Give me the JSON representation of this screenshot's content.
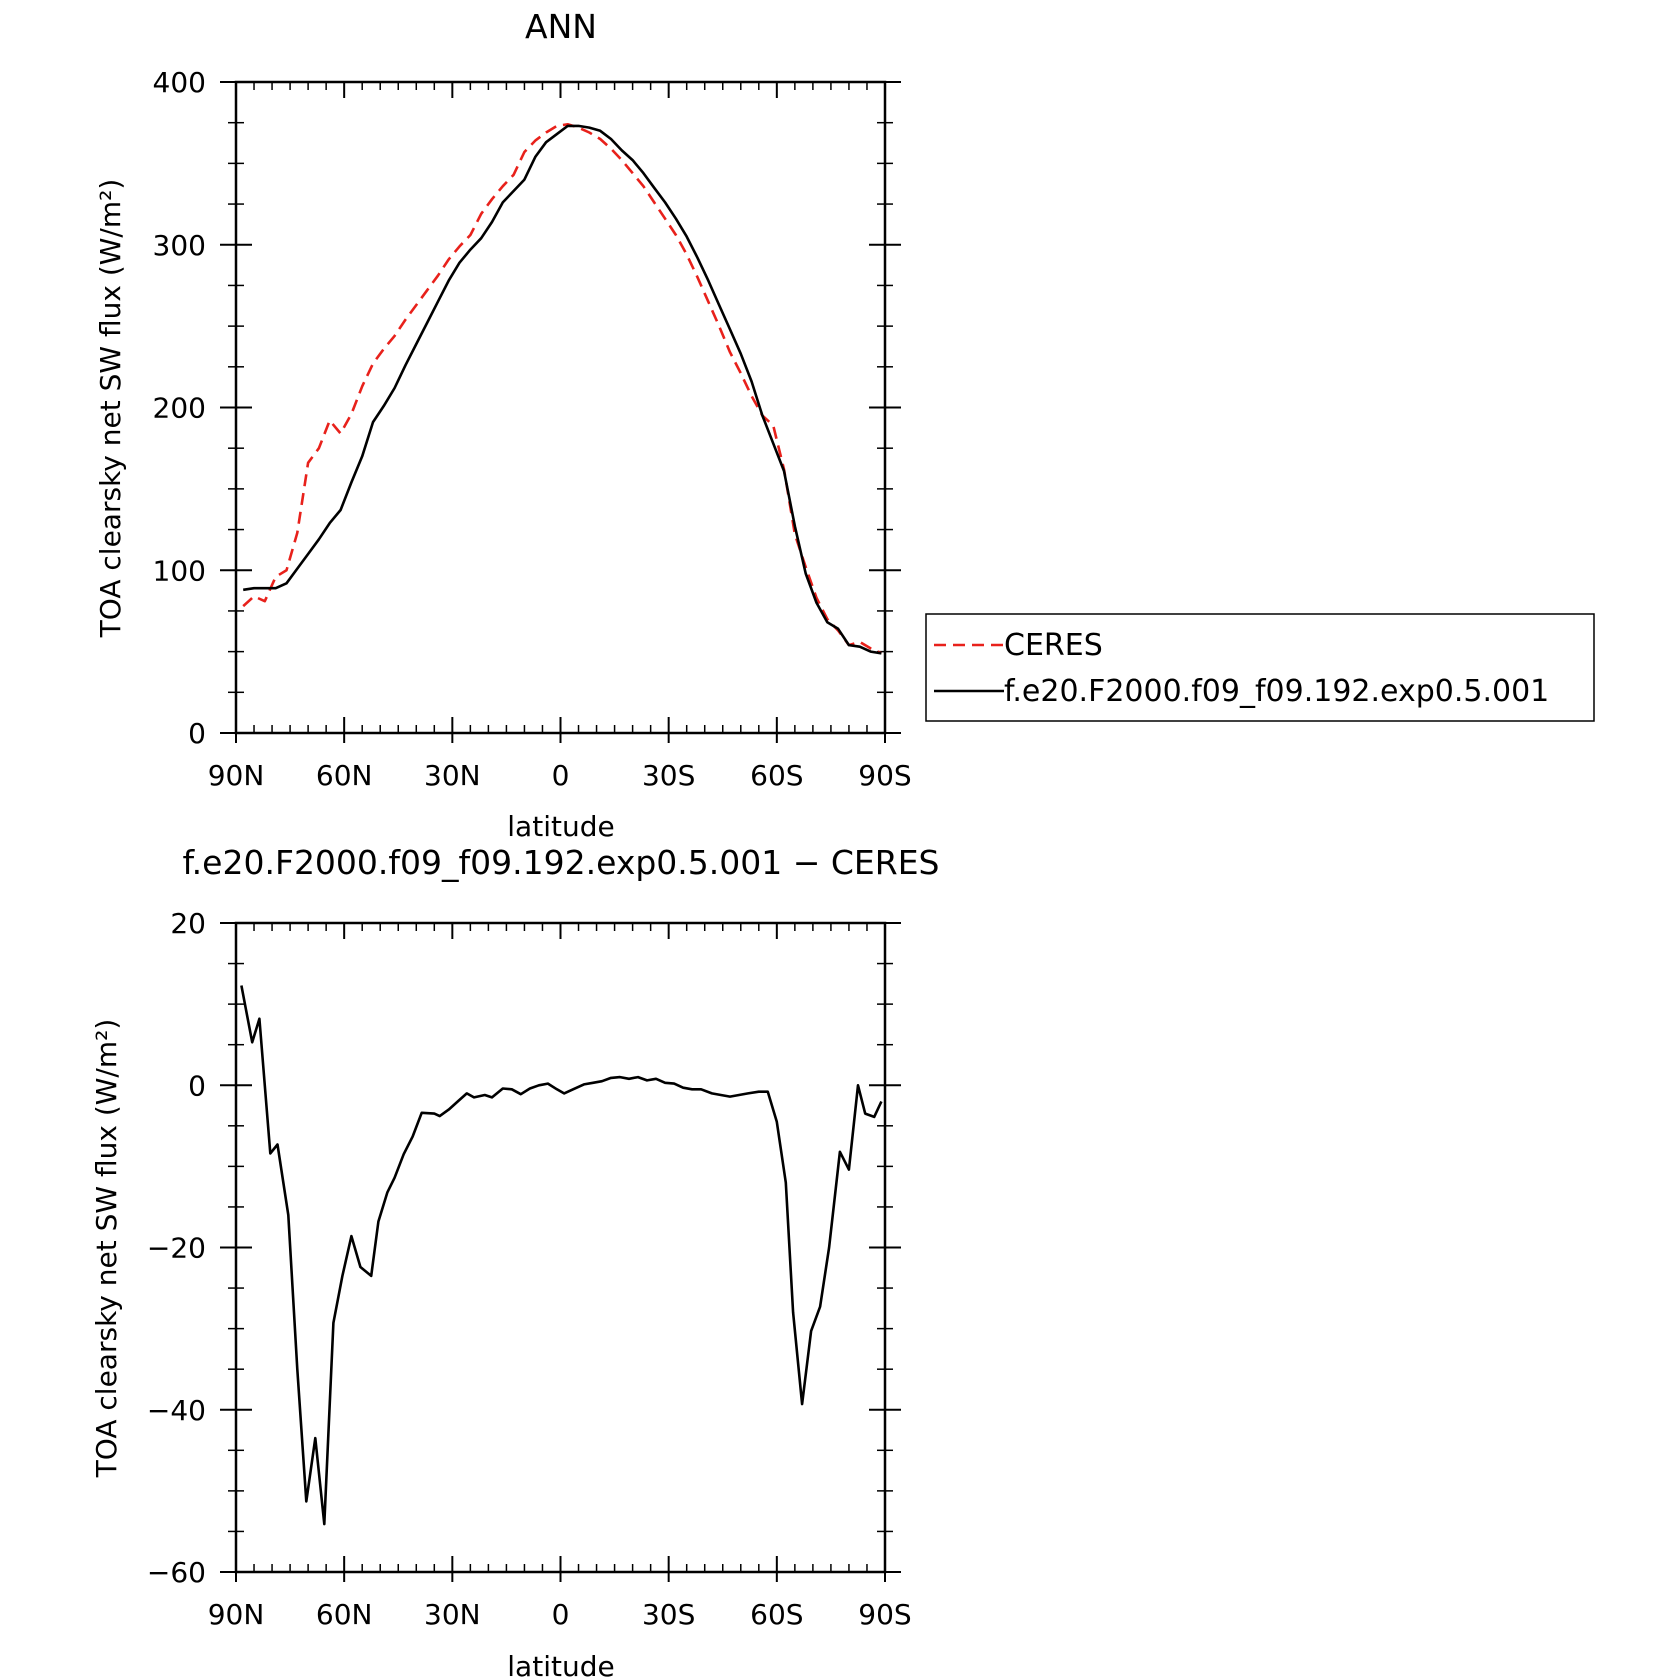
{
  "chart_data": [
    {
      "type": "line",
      "title": "ANN",
      "xlabel": "latitude",
      "ylabel": "TOA clearsky net SW flux (W/m²)",
      "xlim": [
        90,
        -90
      ],
      "ylim": [
        0,
        400
      ],
      "x_ticks": [
        90,
        60,
        30,
        0,
        -30,
        -60,
        -90
      ],
      "x_tick_labels": [
        "90N",
        "60N",
        "30N",
        "0",
        "30S",
        "60S",
        "90S"
      ],
      "y_ticks": [
        0,
        100,
        200,
        300,
        400
      ],
      "y_tick_labels": [
        "0",
        "100",
        "200",
        "300",
        "400"
      ],
      "legend_position": "right",
      "series": [
        {
          "name": "CERES",
          "color": "#e8211b",
          "style": "dashed",
          "x": [
            88,
            85,
            82,
            79,
            76,
            73,
            70,
            67,
            64,
            61,
            58,
            55,
            52,
            49,
            46,
            43,
            40,
            37,
            34,
            31,
            28,
            25,
            22,
            19,
            16,
            13,
            10,
            7,
            4,
            1,
            -2,
            -5,
            -8,
            -11,
            -14,
            -17,
            -20,
            -23,
            -26,
            -29,
            -32,
            -35,
            -38,
            -41,
            -44,
            -47,
            -50,
            -53,
            -56,
            -59,
            -62,
            -65,
            -68,
            -71,
            -74,
            -77,
            -80,
            -83,
            -86,
            -89
          ],
          "y": [
            78,
            84,
            81,
            96,
            100,
            123,
            166,
            175,
            192,
            184,
            196,
            213,
            227,
            236,
            244,
            254,
            263,
            272,
            281,
            291,
            299,
            306,
            319,
            328,
            336,
            343,
            357,
            364,
            369,
            373,
            374,
            372,
            369,
            365,
            359,
            352,
            344,
            336,
            326,
            316,
            306,
            294,
            280,
            265,
            250,
            234,
            221,
            207,
            195,
            189,
            162,
            122,
            102,
            83,
            70,
            63,
            54,
            56,
            52,
            49
          ]
        },
        {
          "name": "f.e20.F2000.f09_f09.192.exp0.5.001",
          "color": "#000000",
          "style": "solid",
          "x": [
            88,
            85,
            82,
            79,
            76,
            73,
            70,
            67,
            64,
            61,
            58,
            55,
            52,
            49,
            46,
            43,
            40,
            37,
            34,
            31,
            28,
            25,
            22,
            19,
            16,
            13,
            10,
            7,
            4,
            1,
            -2,
            -5,
            -8,
            -11,
            -14,
            -17,
            -20,
            -23,
            -26,
            -29,
            -32,
            -35,
            -38,
            -41,
            -44,
            -47,
            -50,
            -53,
            -56,
            -59,
            -62,
            -65,
            -68,
            -71,
            -74,
            -77,
            -80,
            -83,
            -86,
            -89
          ],
          "y": [
            88,
            89,
            89,
            89,
            92,
            101,
            110,
            119,
            129,
            137,
            154,
            170,
            191,
            201,
            212,
            226,
            239,
            252,
            265,
            278,
            289,
            297,
            304,
            314,
            326,
            333,
            340,
            354,
            363,
            368,
            373,
            373,
            372,
            370,
            365,
            358,
            352,
            344,
            335,
            326,
            316,
            305,
            292,
            278,
            263,
            248,
            233,
            216,
            195,
            178,
            161,
            127,
            98,
            80,
            68,
            64,
            54,
            53,
            50,
            49
          ]
        }
      ]
    },
    {
      "type": "line",
      "title": "f.e20.F2000.f09_f09.192.exp0.5.001 − CERES",
      "xlabel": "latitude",
      "ylabel": "TOA clearsky net SW flux (W/m²)",
      "xlim": [
        90,
        -90
      ],
      "ylim": [
        -60,
        20
      ],
      "x_ticks": [
        90,
        60,
        30,
        0,
        -30,
        -60,
        -90
      ],
      "x_tick_labels": [
        "90N",
        "60N",
        "30N",
        "0",
        "30S",
        "60S",
        "90S"
      ],
      "y_ticks": [
        -60,
        -40,
        -20,
        0,
        20
      ],
      "y_tick_labels": [
        "−60",
        "−40",
        "−20",
        "0",
        "20"
      ],
      "series": [
        {
          "color": "#000000",
          "style": "solid",
          "x": [
            88.5,
            85.5,
            83.5,
            80.5,
            78.5,
            75.5,
            73,
            70.5,
            68,
            65.5,
            63,
            60.5,
            58,
            55.5,
            52.5,
            50.5,
            48,
            46,
            43.5,
            41,
            38.5,
            35,
            33.5,
            31,
            28.5,
            26,
            24,
            21,
            19,
            16,
            13.5,
            11,
            8.5,
            6,
            3.5,
            1,
            -1,
            -3.5,
            -6.5,
            -9,
            -11.5,
            -14,
            -16.5,
            -19,
            -21.5,
            -24,
            -26.5,
            -29,
            -31.5,
            -34,
            -36.5,
            -39,
            -42,
            -44.5,
            -47,
            -49.5,
            -52,
            -55,
            -57.5,
            -60,
            -62.5,
            -64.5,
            -67,
            -69.5,
            -72,
            -74.5,
            -77.5,
            -80,
            -82.5,
            -84.5,
            -87,
            -89
          ],
          "y": [
            12.3,
            5.3,
            8.2,
            -8.4,
            -7.3,
            -16.0,
            -35.0,
            -51.3,
            -43.5,
            -54.1,
            -29.3,
            -23.5,
            -18.6,
            -22.4,
            -23.5,
            -16.8,
            -13.2,
            -11.4,
            -8.5,
            -6.3,
            -3.4,
            -3.5,
            -3.8,
            -3.0,
            -2.0,
            -1.0,
            -1.5,
            -1.2,
            -1.5,
            -0.4,
            -0.5,
            -1.1,
            -0.4,
            0.0,
            0.2,
            -0.5,
            -1.0,
            -0.5,
            0.1,
            0.3,
            0.5,
            0.9,
            1.0,
            0.8,
            1.0,
            0.6,
            0.8,
            0.3,
            0.2,
            -0.3,
            -0.5,
            -0.5,
            -1.0,
            -1.2,
            -1.4,
            -1.2,
            -1.0,
            -0.8,
            -0.8,
            -4.5,
            -12.0,
            -28.0,
            -39.3,
            -30.3,
            -27.3,
            -20.0,
            -8.2,
            -10.4,
            0.0,
            -3.5,
            -3.9,
            -2.0
          ]
        }
      ]
    }
  ]
}
